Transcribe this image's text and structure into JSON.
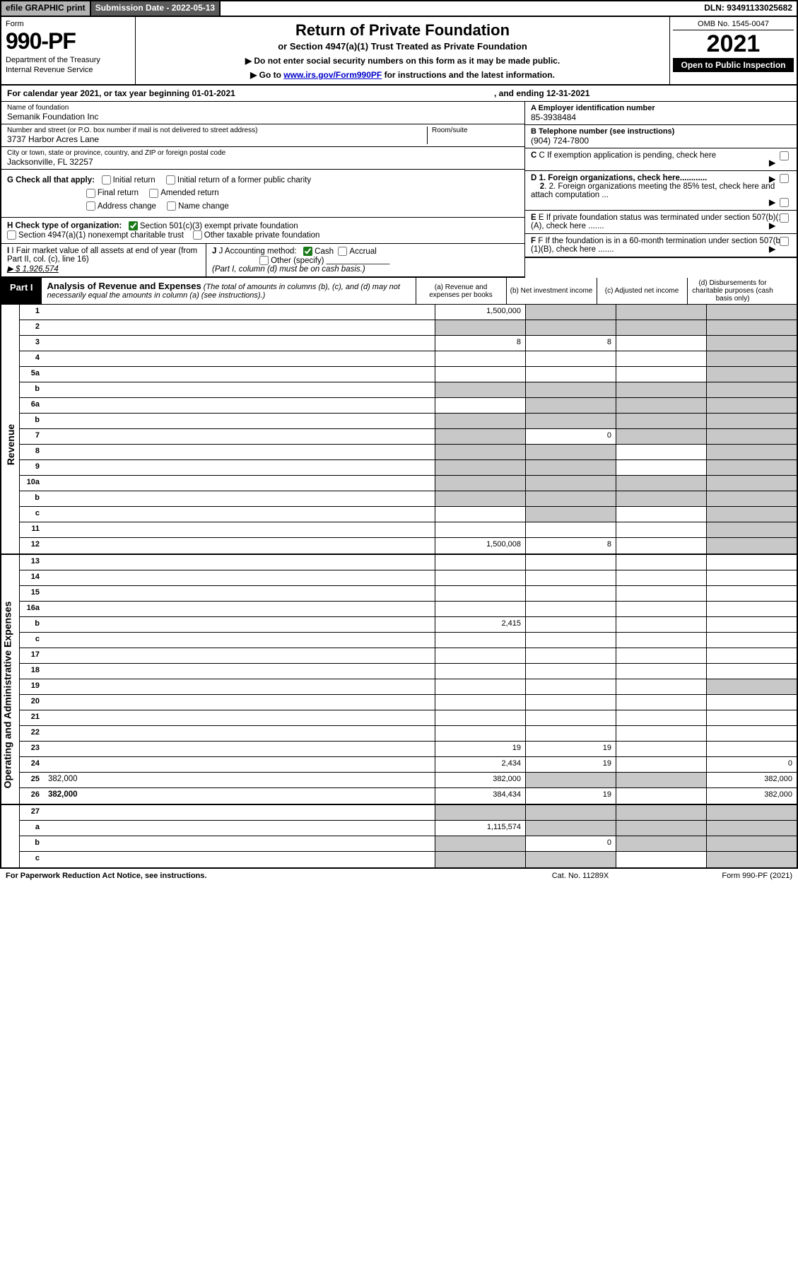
{
  "topbar": {
    "efile": "efile GRAPHIC print",
    "sub_label": "Submission Date - 2022-05-13",
    "dln": "DLN: 93491133025682"
  },
  "header": {
    "form_word": "Form",
    "form_no": "990-PF",
    "dept1": "Department of the Treasury",
    "dept2": "Internal Revenue Service",
    "title": "Return of Private Foundation",
    "subtitle": "or Section 4947(a)(1) Trust Treated as Private Foundation",
    "note1": "▶ Do not enter social security numbers on this form as it may be made public.",
    "note2_pre": "▶ Go to ",
    "note2_link": "www.irs.gov/Form990PF",
    "note2_post": " for instructions and the latest information.",
    "omb": "OMB No. 1545-0047",
    "year": "2021",
    "badge": "Open to Public Inspection"
  },
  "cal": {
    "left": "For calendar year 2021, or tax year beginning 01-01-2021",
    "right": ", and ending 12-31-2021"
  },
  "info": {
    "name_label": "Name of foundation",
    "name": "Semanik Foundation Inc",
    "addr_label": "Number and street (or P.O. box number if mail is not delivered to street address)",
    "addr": "3737 Harbor Acres Lane",
    "room_label": "Room/suite",
    "city_label": "City or town, state or province, country, and ZIP or foreign postal code",
    "city": "Jacksonville, FL  32257",
    "a_label": "A Employer identification number",
    "a_val": "85-3938484",
    "b_label": "B Telephone number (see instructions)",
    "b_val": "(904) 724-7800",
    "c_label": "C If exemption application is pending, check here",
    "d1": "D 1. Foreign organizations, check here............",
    "d2": "2. Foreign organizations meeting the 85% test, check here and attach computation ...",
    "e_label": "E  If private foundation status was terminated under section 507(b)(1)(A), check here .......",
    "f_label": "F  If the foundation is in a 60-month termination under section 507(b)(1)(B), check here .......",
    "g_label": "G Check all that apply:",
    "g_opts": [
      "Initial return",
      "Initial return of a former public charity",
      "Final return",
      "Amended return",
      "Address change",
      "Name change"
    ],
    "h_label": "H Check type of organization:",
    "h1": "Section 501(c)(3) exempt private foundation",
    "h2": "Section 4947(a)(1) nonexempt charitable trust",
    "h3": "Other taxable private foundation",
    "i_label": "I Fair market value of all assets at end of year (from Part II, col. (c), line 16)",
    "i_val": "▶ $  1,926,574",
    "j_label": "J Accounting method:",
    "j_cash": "Cash",
    "j_acc": "Accrual",
    "j_other": "Other (specify)",
    "j_note": "(Part I, column (d) must be on cash basis.)"
  },
  "part1": {
    "label": "Part I",
    "title": "Analysis of Revenue and Expenses",
    "note": " (The total of amounts in columns (b), (c), and (d) may not necessarily equal the amounts in column (a) (see instructions).)",
    "cols": {
      "a": "(a)   Revenue and expenses per books",
      "b": "(b)   Net investment income",
      "c": "(c)   Adjusted net income",
      "d": "(d)   Disbursements for charitable purposes (cash basis only)"
    }
  },
  "sidelabels": {
    "rev": "Revenue",
    "exp": "Operating and Administrative Expenses"
  },
  "rows_rev": [
    {
      "ln": "1",
      "d": "",
      "a": "1,500,000",
      "b": "",
      "c": "",
      "gb": true,
      "gc": true,
      "gd": true
    },
    {
      "ln": "2",
      "d": "",
      "a": "",
      "b": "",
      "c": "",
      "ga": true,
      "gb": true,
      "gc": true,
      "gd": true
    },
    {
      "ln": "3",
      "d": "",
      "a": "8",
      "b": "8",
      "c": "",
      "gd": true
    },
    {
      "ln": "4",
      "d": "",
      "a": "",
      "b": "",
      "c": "",
      "gd": true
    },
    {
      "ln": "5a",
      "d": "",
      "a": "",
      "b": "",
      "c": "",
      "gd": true
    },
    {
      "ln": "b",
      "d": "",
      "a": "",
      "b": "",
      "c": "",
      "ga": true,
      "gb": true,
      "gc": true,
      "gd": true
    },
    {
      "ln": "6a",
      "d": "",
      "a": "",
      "b": "",
      "c": "",
      "gb": true,
      "gc": true,
      "gd": true
    },
    {
      "ln": "b",
      "d": "",
      "a": "",
      "b": "",
      "c": "",
      "ga": true,
      "gb": true,
      "gc": true,
      "gd": true
    },
    {
      "ln": "7",
      "d": "",
      "a": "",
      "b": "0",
      "c": "",
      "ga": true,
      "gc": true,
      "gd": true
    },
    {
      "ln": "8",
      "d": "",
      "a": "",
      "b": "",
      "c": "",
      "ga": true,
      "gb": true,
      "gd": true
    },
    {
      "ln": "9",
      "d": "",
      "a": "",
      "b": "",
      "c": "",
      "ga": true,
      "gb": true,
      "gd": true
    },
    {
      "ln": "10a",
      "d": "",
      "a": "",
      "b": "",
      "c": "",
      "ga": true,
      "gb": true,
      "gc": true,
      "gd": true
    },
    {
      "ln": "b",
      "d": "",
      "a": "",
      "b": "",
      "c": "",
      "ga": true,
      "gb": true,
      "gc": true,
      "gd": true
    },
    {
      "ln": "c",
      "d": "",
      "a": "",
      "b": "",
      "c": "",
      "gb": true,
      "gd": true
    },
    {
      "ln": "11",
      "d": "",
      "a": "",
      "b": "",
      "c": "",
      "gd": true
    },
    {
      "ln": "12",
      "d": "",
      "a": "1,500,008",
      "b": "8",
      "c": "",
      "bold": true,
      "gd": true
    }
  ],
  "rows_exp": [
    {
      "ln": "13",
      "d": "",
      "a": "",
      "b": "",
      "c": ""
    },
    {
      "ln": "14",
      "d": "",
      "a": "",
      "b": "",
      "c": ""
    },
    {
      "ln": "15",
      "d": "",
      "a": "",
      "b": "",
      "c": ""
    },
    {
      "ln": "16a",
      "d": "",
      "a": "",
      "b": "",
      "c": ""
    },
    {
      "ln": "b",
      "d": "",
      "a": "2,415",
      "b": "",
      "c": ""
    },
    {
      "ln": "c",
      "d": "",
      "a": "",
      "b": "",
      "c": ""
    },
    {
      "ln": "17",
      "d": "",
      "a": "",
      "b": "",
      "c": ""
    },
    {
      "ln": "18",
      "d": "",
      "a": "",
      "b": "",
      "c": ""
    },
    {
      "ln": "19",
      "d": "",
      "a": "",
      "b": "",
      "c": "",
      "gd": true
    },
    {
      "ln": "20",
      "d": "",
      "a": "",
      "b": "",
      "c": ""
    },
    {
      "ln": "21",
      "d": "",
      "a": "",
      "b": "",
      "c": ""
    },
    {
      "ln": "22",
      "d": "",
      "a": "",
      "b": "",
      "c": ""
    },
    {
      "ln": "23",
      "d": "",
      "a": "19",
      "b": "19",
      "c": ""
    },
    {
      "ln": "24",
      "d": "0",
      "a": "2,434",
      "b": "19",
      "c": "",
      "bold": true
    },
    {
      "ln": "25",
      "d": "382,000",
      "a": "382,000",
      "b": "",
      "c": "",
      "gb": true,
      "gc": true
    },
    {
      "ln": "26",
      "d": "382,000",
      "a": "384,434",
      "b": "19",
      "c": "",
      "bold": true
    }
  ],
  "rows_bot": [
    {
      "ln": "27",
      "d": "",
      "a": "",
      "b": "",
      "c": "",
      "ga": true,
      "gb": true,
      "gc": true,
      "gd": true
    },
    {
      "ln": "a",
      "d": "",
      "a": "1,115,574",
      "b": "",
      "c": "",
      "bold": true,
      "gb": true,
      "gc": true,
      "gd": true
    },
    {
      "ln": "b",
      "d": "",
      "a": "",
      "b": "0",
      "c": "",
      "bold": true,
      "ga": true,
      "gc": true,
      "gd": true
    },
    {
      "ln": "c",
      "d": "",
      "a": "",
      "b": "",
      "c": "",
      "bold": true,
      "ga": true,
      "gb": true,
      "gd": true
    }
  ],
  "foot": {
    "l": "For Paperwork Reduction Act Notice, see instructions.",
    "m": "Cat. No. 11289X",
    "r": "Form 990-PF (2021)"
  }
}
